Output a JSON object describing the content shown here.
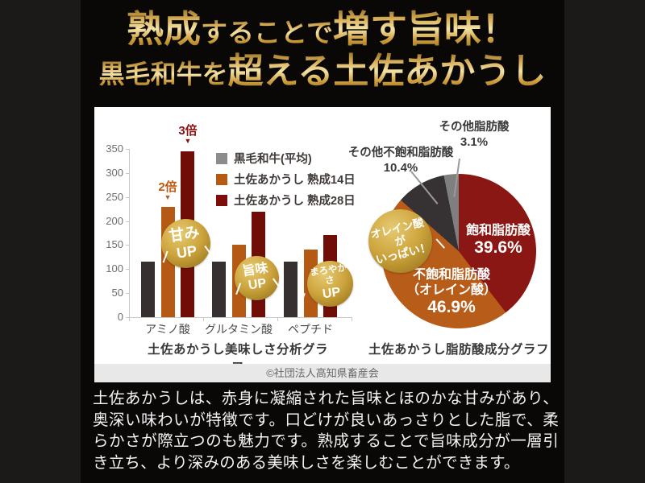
{
  "header": {
    "line1": {
      "seg1": "熟成",
      "seg2": "することで",
      "seg3": "増す旨味！"
    },
    "line2": {
      "seg1": "黒毛和牛を",
      "seg2": "超える土佐あかうし"
    }
  },
  "chart_data": [
    {
      "type": "bar",
      "title": "土佐あかうし美味しさ分析グラフ",
      "categories": [
        "アミノ酸",
        "グルタミン酸",
        "ペプチド"
      ],
      "series": [
        {
          "name": "黒毛和牛(平均)",
          "legend_color": "#8c8c8c",
          "bar_color": "#363130",
          "values": [
            115,
            115,
            115
          ]
        },
        {
          "name": "土佐あかうし 熟成14日",
          "legend_color": "#b55a15",
          "bar_color": "#b55a15",
          "values": [
            230,
            150,
            140
          ]
        },
        {
          "name": "土佐あかうし 熟成28日",
          "legend_color": "#7c0d08",
          "bar_color": "#6f0d06",
          "values": [
            345,
            220,
            170
          ]
        }
      ],
      "ylim": [
        0,
        350
      ],
      "ytick_step": 50,
      "grid": false,
      "legend_position": "top-right",
      "annotations": [
        {
          "text": "2倍",
          "pointer": "▼",
          "color": "#c05a10",
          "target": "アミノ酸 / 土佐あかうし 熟成14日"
        },
        {
          "text": "3倍",
          "pointer": "▼",
          "color": "#8a1210",
          "target": "アミノ酸 / 土佐あかうし 熟成28日"
        }
      ],
      "badges": [
        {
          "line1": "甘み",
          "line2": "UP"
        },
        {
          "line1": "旨味",
          "line2": "UP"
        },
        {
          "line1": "まろやかさ",
          "line2": "UP"
        }
      ]
    },
    {
      "type": "pie",
      "title": "土佐あかうし脂肪酸成分グラフ",
      "start_angle_deg": 0,
      "direction": "clockwise",
      "slices": [
        {
          "label": "飽和脂肪酸",
          "value": 39.6,
          "pct_label": "39.6%",
          "color": "#8a1713",
          "label_position": "inside"
        },
        {
          "label": "不飽和脂肪酸",
          "label2": "（オレイン酸）",
          "value": 46.9,
          "pct_label": "46.9%",
          "color": "#b85c1a",
          "label_position": "inside"
        },
        {
          "label": "その他不飽和脂肪酸",
          "value": 10.4,
          "pct_label": "10.4%",
          "color": "#363233",
          "label_position": "outside"
        },
        {
          "label": "その他脂肪酸",
          "value": 3.1,
          "pct_label": "3.1%",
          "color": "#7f7f7f",
          "label_position": "outside"
        }
      ],
      "badge": {
        "line1": "オレイン酸が",
        "line2": "いっぱい！"
      }
    }
  ],
  "copyright": "©社団法人高知県畜産会",
  "body_text": "土佐あかうしは、赤身に凝縮された旨味とほのかな甘みがあり、奥深い味わいが特徴です。口どけが良いあっさりとした脂で、柔らかさが際立つのも魅力です。熟成することで旨味成分が一層引き立ち、より深みのある美味しさを楽しむことができます。",
  "palette": {
    "gold_light": "#f3e3a8",
    "gold": "#cda43d",
    "gold_dark": "#8f6b1e",
    "background_outer": "#1c1919",
    "background_inner": "#0a0807",
    "panel": "#ffffff"
  }
}
